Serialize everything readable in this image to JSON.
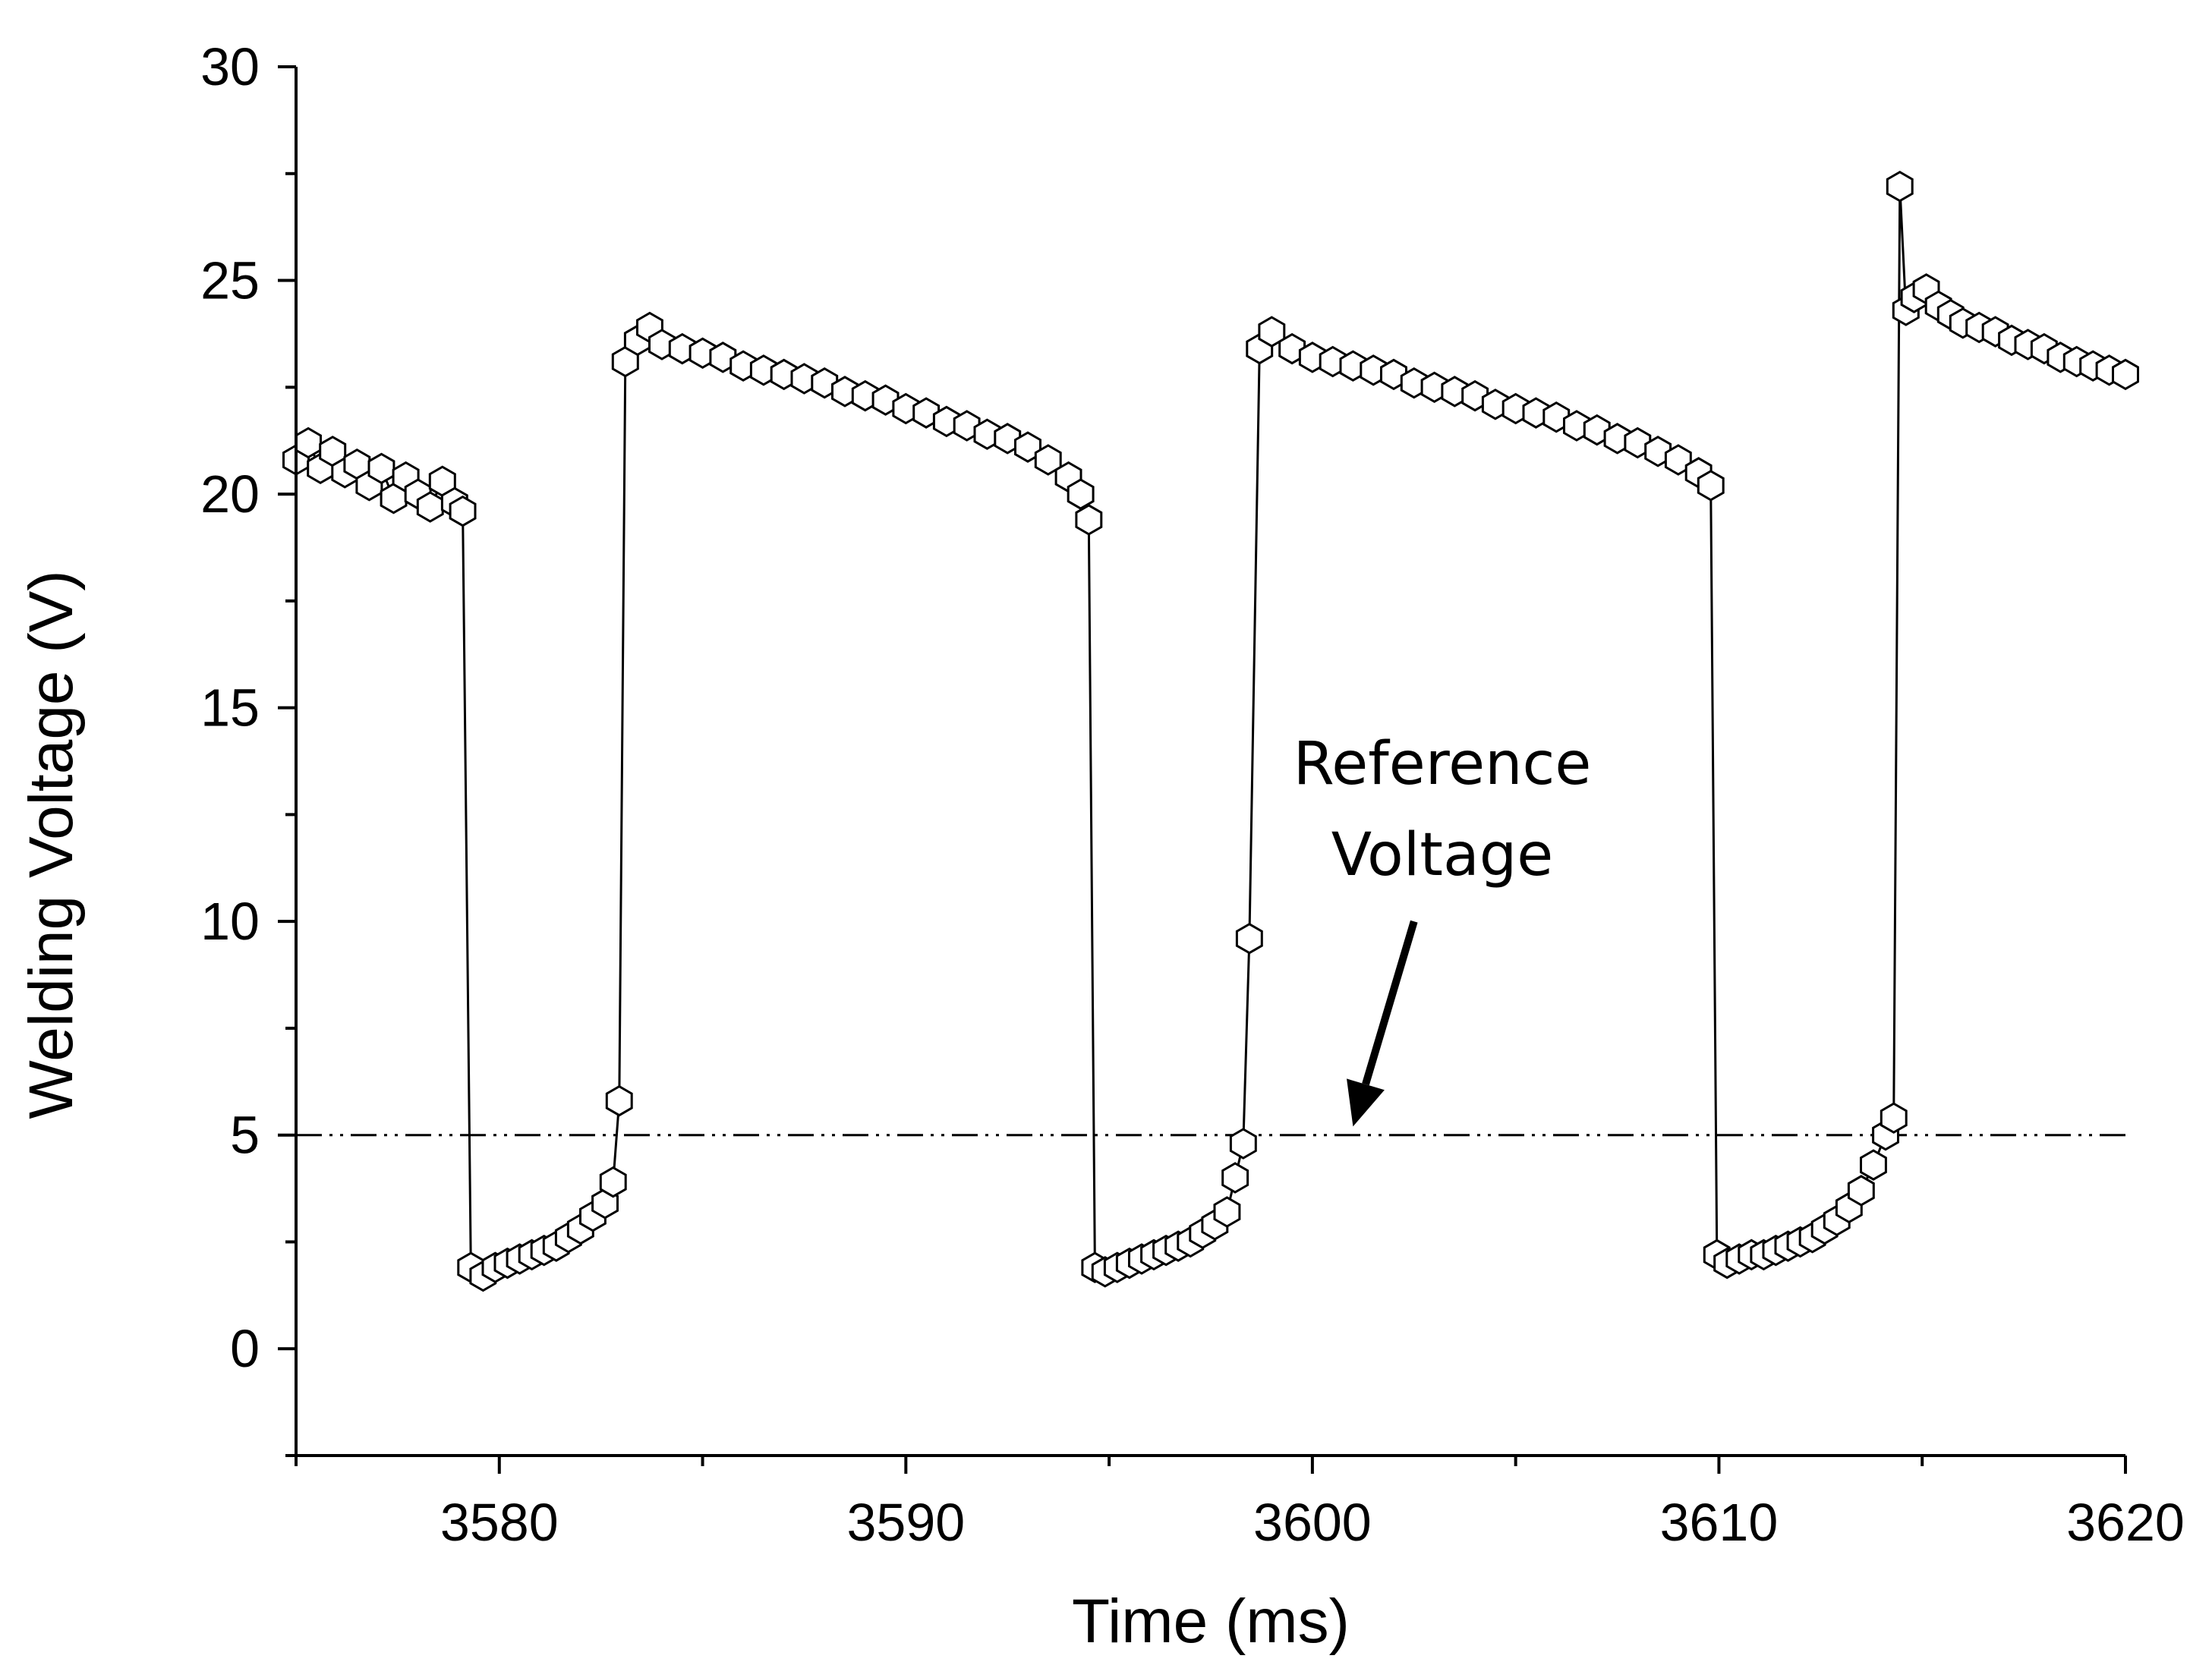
{
  "chart_data": {
    "type": "scatter",
    "xlabel": "Time (ms)",
    "ylabel": "Welding Voltage (V)",
    "xlim": [
      3575,
      3620
    ],
    "ylim": [
      -2.5,
      30
    ],
    "x_ticks": [
      3580,
      3590,
      3600,
      3610,
      3620
    ],
    "y_ticks": [
      0,
      5,
      10,
      15,
      20,
      25,
      30
    ],
    "x_minor_step": 5,
    "y_minor_step": 2.5,
    "grid": false,
    "annotation": {
      "lines": [
        "Reference",
        "Voltage"
      ],
      "arrow_from": [
        3602.5,
        10
      ],
      "arrow_to": [
        3601,
        5.2
      ]
    },
    "reference_line": {
      "name": "Reference Voltage",
      "y": 5
    },
    "series": [
      {
        "name": "Welding Voltage",
        "marker": "hexagon",
        "x": [
          3575.0,
          3575.3,
          3575.6,
          3575.9,
          3576.2,
          3576.5,
          3576.8,
          3577.1,
          3577.4,
          3577.7,
          3578.0,
          3578.3,
          3578.6,
          3578.9,
          3579.1,
          3579.3,
          3579.6,
          3579.9,
          3580.2,
          3580.5,
          3580.8,
          3581.1,
          3581.4,
          3581.7,
          3582.0,
          3582.3,
          3582.6,
          3582.8,
          3582.95,
          3583.1,
          3583.4,
          3583.7,
          3584.0,
          3584.5,
          3585.0,
          3585.5,
          3586.0,
          3586.5,
          3587.0,
          3587.5,
          3588.0,
          3588.5,
          3589.0,
          3589.5,
          3590.0,
          3590.5,
          3591.0,
          3591.5,
          3592.0,
          3592.5,
          3593.0,
          3593.5,
          3594.0,
          3594.3,
          3594.5,
          3594.65,
          3594.9,
          3595.2,
          3595.5,
          3595.8,
          3596.1,
          3596.4,
          3596.7,
          3597.0,
          3597.3,
          3597.6,
          3597.9,
          3598.1,
          3598.3,
          3598.45,
          3598.7,
          3599.0,
          3599.5,
          3600.0,
          3600.5,
          3601.0,
          3601.5,
          3602.0,
          3602.5,
          3603.0,
          3603.5,
          3604.0,
          3604.5,
          3605.0,
          3605.5,
          3606.0,
          3606.5,
          3607.0,
          3607.5,
          3608.0,
          3608.5,
          3609.0,
          3609.5,
          3609.8,
          3609.95,
          3610.2,
          3610.5,
          3610.8,
          3611.1,
          3611.4,
          3611.7,
          3612.0,
          3612.3,
          3612.6,
          3612.9,
          3613.2,
          3613.5,
          3613.8,
          3614.1,
          3614.3,
          3614.45,
          3614.6,
          3614.8,
          3615.1,
          3615.4,
          3615.7,
          3616.0,
          3616.4,
          3616.8,
          3617.2,
          3617.6,
          3618.0,
          3618.4,
          3618.8,
          3619.2,
          3619.6,
          3620.0
        ],
        "y": [
          20.8,
          21.2,
          20.6,
          21.0,
          20.5,
          20.7,
          20.2,
          20.6,
          19.9,
          20.4,
          20.0,
          19.7,
          20.3,
          19.8,
          19.6,
          1.9,
          1.7,
          1.9,
          2.0,
          2.1,
          2.2,
          2.3,
          2.4,
          2.6,
          2.8,
          3.1,
          3.4,
          3.9,
          5.8,
          23.1,
          23.6,
          23.9,
          23.5,
          23.4,
          23.3,
          23.2,
          23.0,
          22.9,
          22.8,
          22.7,
          22.6,
          22.4,
          22.3,
          22.2,
          22.0,
          21.9,
          21.7,
          21.6,
          21.4,
          21.3,
          21.1,
          20.8,
          20.4,
          20.0,
          19.4,
          1.9,
          1.8,
          1.9,
          2.0,
          2.1,
          2.2,
          2.3,
          2.4,
          2.5,
          2.7,
          2.9,
          3.2,
          4.0,
          4.8,
          9.6,
          23.4,
          23.8,
          23.4,
          23.2,
          23.1,
          23.0,
          22.9,
          22.8,
          22.6,
          22.5,
          22.4,
          22.3,
          22.1,
          22.0,
          21.9,
          21.8,
          21.6,
          21.5,
          21.3,
          21.2,
          21.0,
          20.8,
          20.5,
          20.2,
          2.2,
          2.0,
          2.1,
          2.2,
          2.2,
          2.3,
          2.4,
          2.5,
          2.6,
          2.8,
          3.0,
          3.3,
          3.7,
          4.3,
          5.0,
          5.4,
          27.2,
          24.3,
          24.6,
          24.8,
          24.4,
          24.2,
          24.0,
          23.9,
          23.8,
          23.6,
          23.5,
          23.4,
          23.2,
          23.1,
          23.0,
          22.9,
          22.8
        ]
      }
    ]
  }
}
